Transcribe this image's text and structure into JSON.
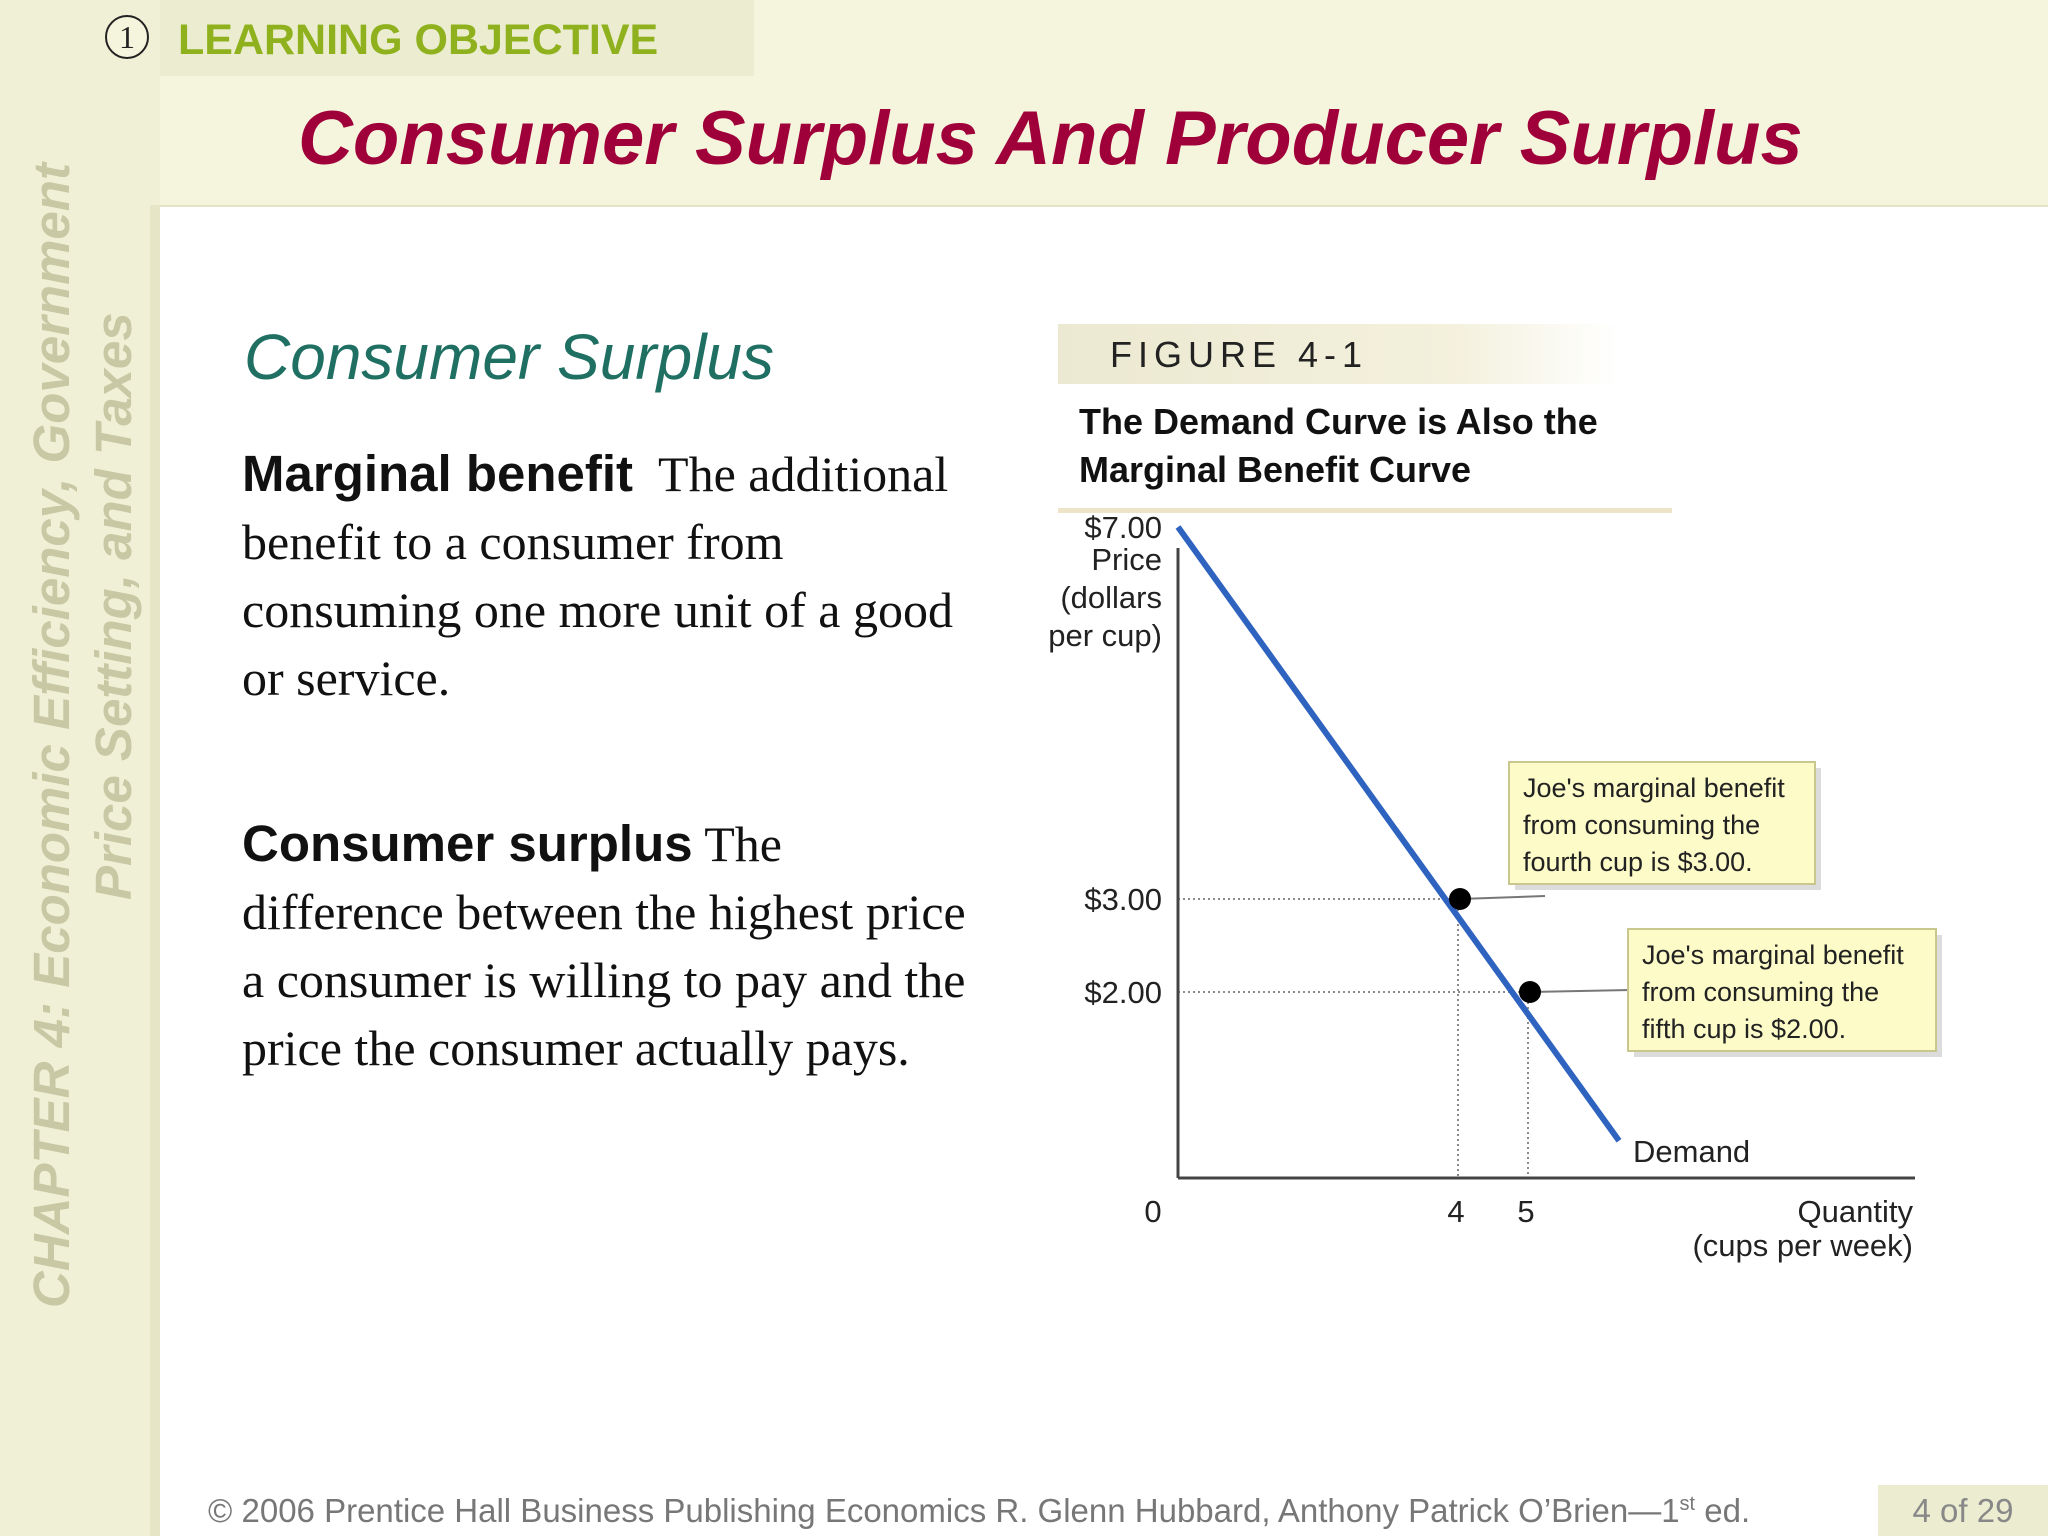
{
  "sidebar": {
    "line1": "CHAPTER 4:  Economic Efficiency, Government",
    "line2": "Price Setting, and Taxes"
  },
  "objective": {
    "number": "1",
    "label": "LEARNING OBJECTIVE"
  },
  "title": "Consumer Surplus And Producer Surplus",
  "section_title": "Consumer Surplus",
  "definitions": [
    {
      "term": "Marginal benefit",
      "text": "The additional benefit to a consumer from consuming one more unit of a good or service."
    },
    {
      "term": "Consumer surplus",
      "text": "The difference between the highest price a consumer is willing to pay and the price the consumer actually pays."
    }
  ],
  "figure": {
    "label": "FIGURE 4-1",
    "caption": "The Demand Curve is Also the Marginal Benefit Curve"
  },
  "chart_data": {
    "type": "line",
    "ylabel_lines": [
      "Price",
      "(dollars",
      "per cup)"
    ],
    "xlabel_lines": [
      "Quantity",
      "(cups per week)"
    ],
    "origin_label": "0",
    "y_ticks": [
      {
        "value": 7,
        "label": "$7.00"
      },
      {
        "value": 3,
        "label": "$3.00"
      },
      {
        "value": 2,
        "label": "$2.00"
      }
    ],
    "x_ticks": [
      {
        "value": 4,
        "label": "4"
      },
      {
        "value": 5,
        "label": "5"
      }
    ],
    "xlim": [
      0,
      10
    ],
    "ylim": [
      0,
      7
    ],
    "series": [
      {
        "name": "Demand",
        "x": [
          0,
          6.3
        ],
        "y": [
          7.0,
          0.4
        ],
        "color": "#2f63c0"
      }
    ],
    "points": [
      {
        "x": 4,
        "y": 3
      },
      {
        "x": 5,
        "y": 2
      }
    ],
    "annotations": [
      {
        "lines": [
          "Joe's marginal benefit",
          "from consuming the",
          "fourth cup is $3.00."
        ],
        "target": 0
      },
      {
        "lines": [
          "Joe's marginal benefit",
          "from consuming the",
          "fifth cup is $2.00."
        ],
        "target": 1
      }
    ]
  },
  "footer": {
    "text": "© 2006 Prentice Hall Business Publishing   Economics  R. Glenn Hubbard, Anthony Patrick O’Brien—1",
    "sup": "st",
    "tail": " ed.",
    "page": "4 of 29"
  }
}
